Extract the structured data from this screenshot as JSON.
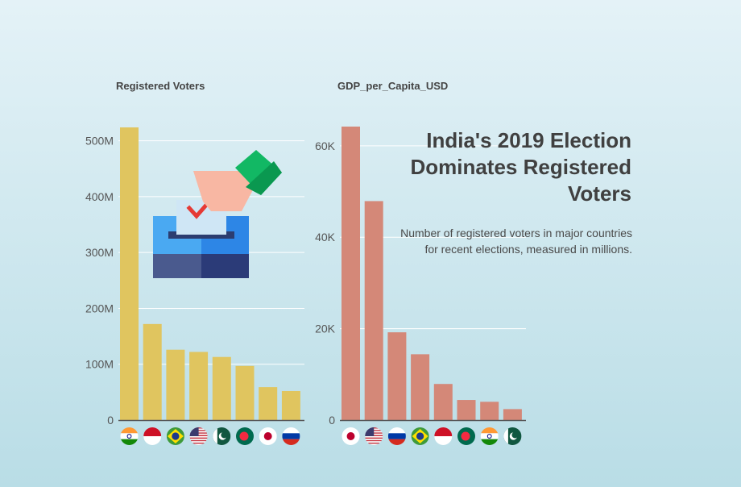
{
  "headline": "India's 2019 Election Dominates Registered Voters",
  "subtitle": "Number of registered voters in major countries for recent elections, measured in millions.",
  "colors": {
    "voters_bar": "#e0c55f",
    "gdp_bar": "#d48878",
    "grid": "#ffffff",
    "axis_text": "#555555"
  },
  "chart_data": [
    {
      "type": "bar",
      "title": "Registered Voters",
      "categories": [
        "India",
        "Indonesia",
        "Brazil",
        "United States",
        "Pakistan",
        "Bangladesh",
        "Japan",
        "Russia"
      ],
      "values": [
        524,
        172,
        126,
        122,
        113,
        97,
        59,
        52
      ],
      "unit": "M",
      "ylim": [
        0,
        524
      ],
      "yticks": [
        0,
        100,
        200,
        300,
        400,
        500
      ],
      "ytick_labels": [
        "0",
        "100M",
        "200M",
        "300M",
        "400M",
        "500M"
      ],
      "grid": true,
      "category_icons": [
        "flag-india-icon",
        "flag-indonesia-icon",
        "flag-brazil-icon",
        "flag-usa-icon",
        "flag-pakistan-icon",
        "flag-bangladesh-icon",
        "flag-japan-icon",
        "flag-russia-icon"
      ]
    },
    {
      "type": "bar",
      "title": "GDP_per_Capita_USD",
      "categories": [
        "Japan",
        "United States",
        "Russia",
        "Brazil",
        "Indonesia",
        "Bangladesh",
        "India",
        "Pakistan"
      ],
      "values": [
        64200,
        47900,
        19200,
        14400,
        7900,
        4400,
        4000,
        2400
      ],
      "ylim": [
        0,
        64200
      ],
      "yticks": [
        0,
        20000,
        40000,
        60000
      ],
      "ytick_labels": [
        "0",
        "20K",
        "40K",
        "60K"
      ],
      "grid": true,
      "category_icons": [
        "flag-japan-icon",
        "flag-usa-icon",
        "flag-russia-icon",
        "flag-brazil-icon",
        "flag-indonesia-icon",
        "flag-bangladesh-icon",
        "flag-india-icon",
        "flag-pakistan-icon"
      ]
    }
  ]
}
